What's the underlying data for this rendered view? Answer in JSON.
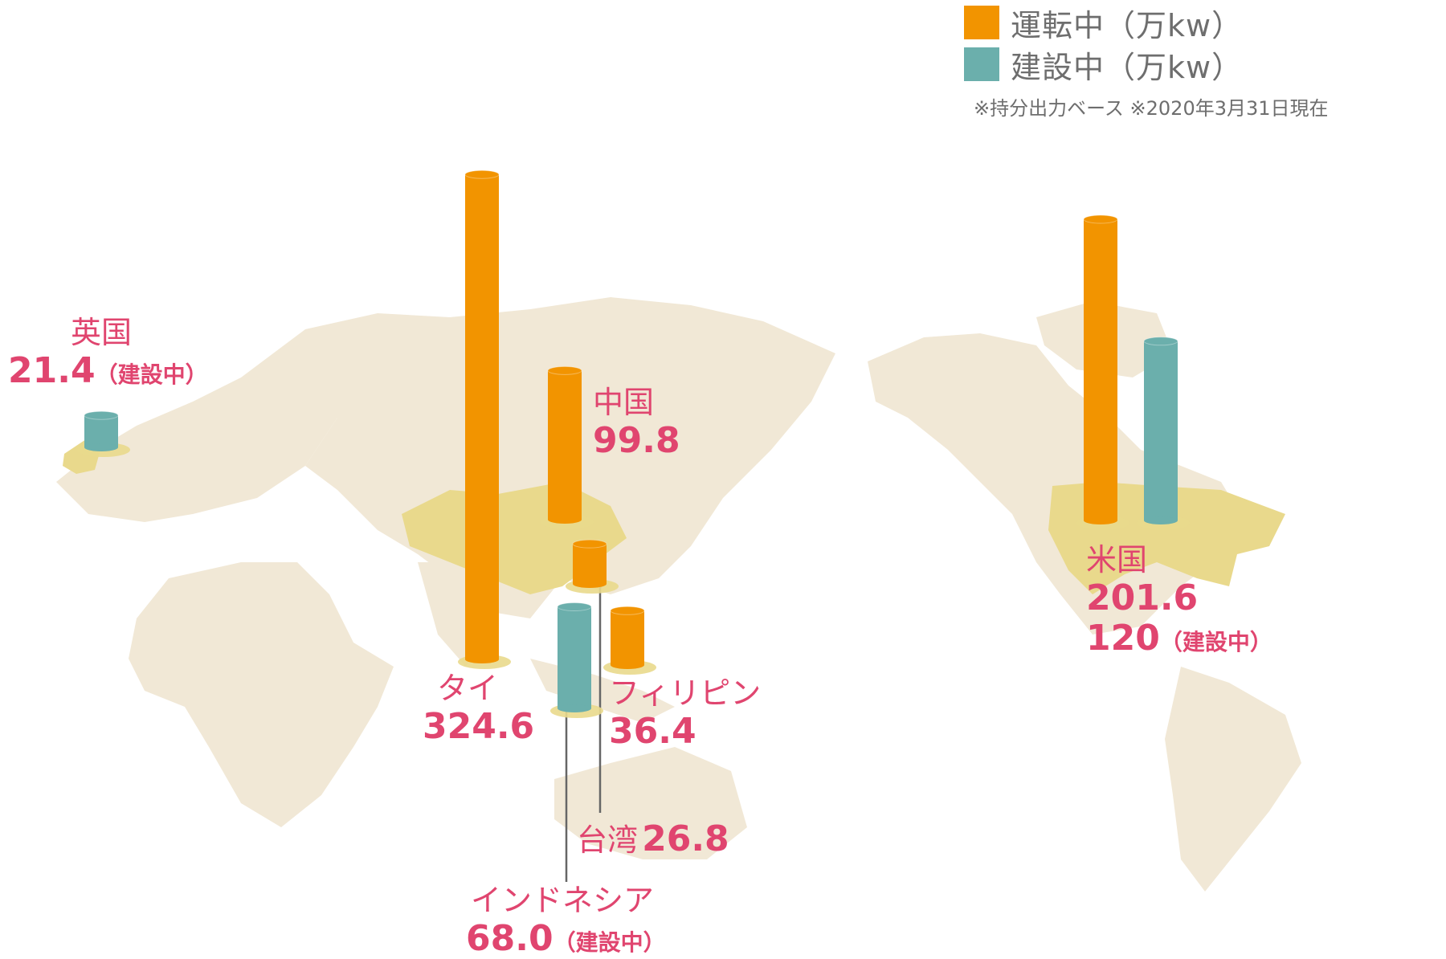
{
  "legend": {
    "operating_label": "運転中（万kw）",
    "construction_label": "建設中（万kw）",
    "note": "※持分出力ベース ※2020年3月31日現在"
  },
  "colors": {
    "operating": "#f29400",
    "construction": "#6bafac",
    "land": "#f1e8d6",
    "highlight": "#e9d98c",
    "label": "#e0456f",
    "leader": "#666666"
  },
  "labels": {
    "uk": {
      "name": "英国",
      "value": "21.4",
      "sub": "（建設中）"
    },
    "china": {
      "name": "中国",
      "value": "99.8"
    },
    "thailand": {
      "name": "タイ",
      "value": "324.6"
    },
    "philippines": {
      "name": "フィリピン",
      "value": "36.4"
    },
    "taiwan": {
      "name": "台湾",
      "value": "26.8"
    },
    "indonesia": {
      "name": "インドネシア",
      "value": "68.0",
      "sub": "（建設中）"
    },
    "usa": {
      "name": "米国",
      "value": "201.6",
      "value2": "120",
      "sub": "（建設中）"
    }
  },
  "chart_data": {
    "type": "bar",
    "series_units": "万kw",
    "bars": [
      {
        "country": "英国",
        "status": "建設中",
        "value": 21.4
      },
      {
        "country": "タイ",
        "status": "運転中",
        "value": 324.6
      },
      {
        "country": "中国",
        "status": "運転中",
        "value": 99.8
      },
      {
        "country": "台湾",
        "status": "運転中",
        "value": 26.8
      },
      {
        "country": "インドネシア",
        "status": "建設中",
        "value": 68.0
      },
      {
        "country": "フィリピン",
        "status": "運転中",
        "value": 36.4
      },
      {
        "country": "米国",
        "status": "運転中",
        "value": 201.6
      },
      {
        "country": "米国",
        "status": "建設中",
        "value": 120
      }
    ]
  }
}
